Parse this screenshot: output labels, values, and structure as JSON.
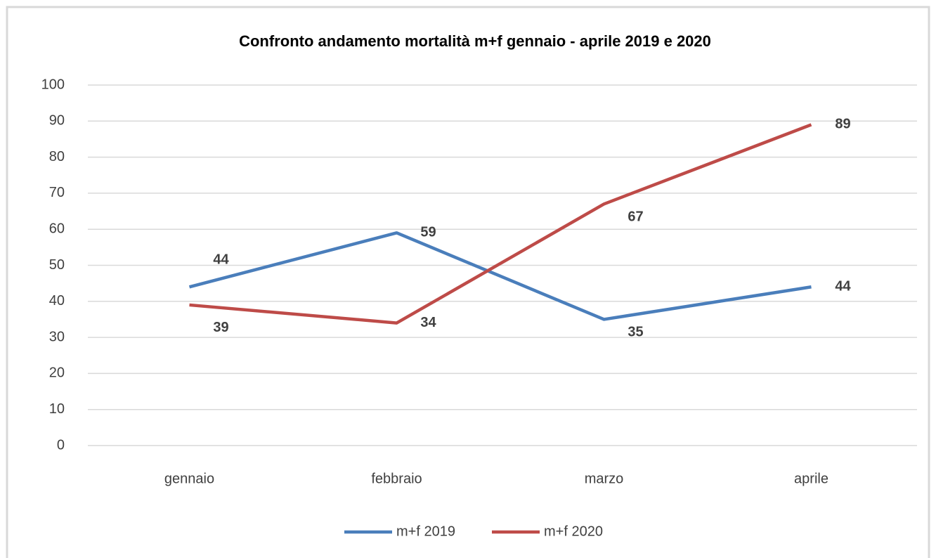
{
  "chart_data": {
    "type": "line",
    "title": "Confronto andamento mortalità m+f gennaio - aprile 2019 e 2020",
    "categories": [
      "gennaio",
      "febbraio",
      "marzo",
      "aprile"
    ],
    "series": [
      {
        "name": "m+f 2019",
        "color": "#4a7ebb",
        "values": [
          44,
          59,
          35,
          44
        ]
      },
      {
        "name": "m+f 2020",
        "color": "#be4b48",
        "values": [
          39,
          34,
          67,
          89
        ]
      }
    ],
    "ylim": [
      0,
      100
    ],
    "yticks": [
      0,
      10,
      20,
      30,
      40,
      50,
      60,
      70,
      80,
      90,
      100
    ],
    "grid": true,
    "legend": "bottom"
  }
}
